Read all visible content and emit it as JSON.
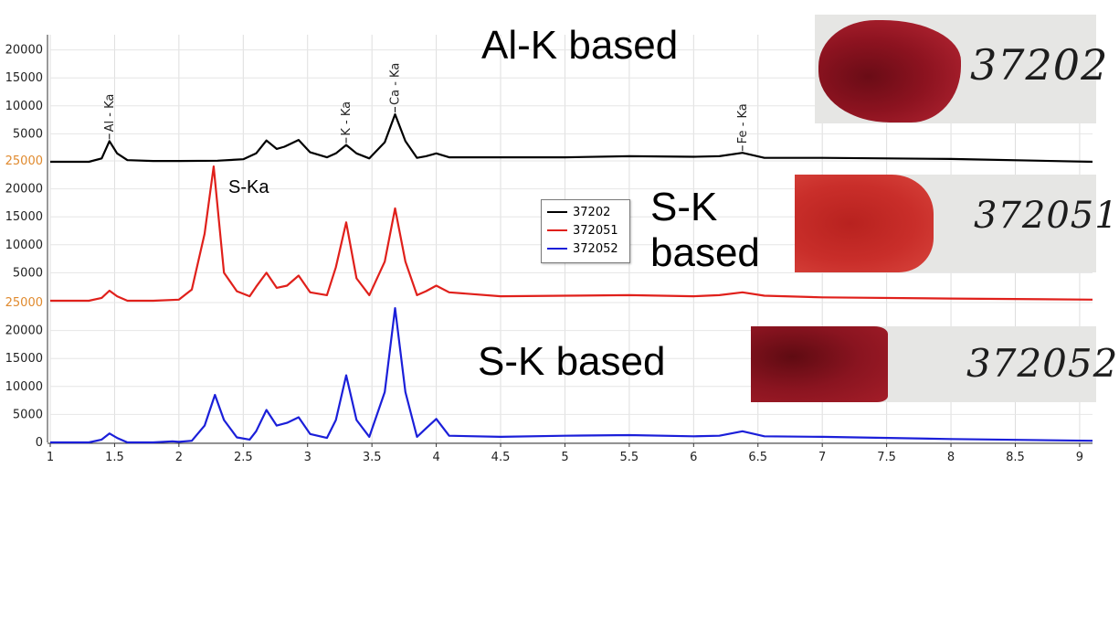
{
  "chart_data": {
    "type": "line",
    "xlim": [
      1,
      9.1
    ],
    "x_ticks": [
      "1",
      "1.5",
      "2",
      "2.5",
      "3",
      "3.5",
      "4",
      "4.5",
      "5",
      "5.5",
      "6",
      "6.5",
      "7",
      "7.5",
      "8",
      "8.5",
      "9"
    ],
    "y_ticks": [
      "0",
      "5000",
      "10000",
      "15000",
      "20000",
      "25000"
    ],
    "ylim_per_panel": [
      0,
      25000
    ],
    "peak_labels": [
      "Al - Ka",
      "K - Ka",
      "Ca - Ka",
      "Fe - Ka"
    ],
    "annotation": "S-Ka",
    "legend_position": "center",
    "series": [
      {
        "name": "37202",
        "color": "#000000",
        "x": [
          1.0,
          1.3,
          1.4,
          1.46,
          1.52,
          1.6,
          1.8,
          2.0,
          2.3,
          2.5,
          2.6,
          2.68,
          2.76,
          2.82,
          2.93,
          3.02,
          3.15,
          3.22,
          3.3,
          3.38,
          3.48,
          3.6,
          3.68,
          3.76,
          3.85,
          3.92,
          4.0,
          4.1,
          4.5,
          5.0,
          5.5,
          6.0,
          6.2,
          6.38,
          6.55,
          7.0,
          8.0,
          9.1
        ],
        "y": [
          0,
          0,
          600,
          3700,
          1500,
          300,
          150,
          150,
          200,
          450,
          1500,
          3800,
          2300,
          2700,
          3900,
          1700,
          800,
          1500,
          3000,
          1500,
          600,
          3500,
          8500,
          3700,
          700,
          1000,
          1500,
          800,
          800,
          800,
          1000,
          900,
          1000,
          1600,
          700,
          700,
          500,
          0
        ]
      },
      {
        "name": "372051",
        "color": "#e0201b",
        "x": [
          1.0,
          1.3,
          1.4,
          1.46,
          1.52,
          1.6,
          1.8,
          2.0,
          2.1,
          2.2,
          2.27,
          2.35,
          2.45,
          2.55,
          2.6,
          2.68,
          2.76,
          2.84,
          2.93,
          3.02,
          3.15,
          3.22,
          3.3,
          3.38,
          3.48,
          3.6,
          3.68,
          3.76,
          3.85,
          3.92,
          4.0,
          4.1,
          4.5,
          5.0,
          5.5,
          6.0,
          6.2,
          6.38,
          6.55,
          7.0,
          8.0,
          9.1
        ],
        "y": [
          0,
          0,
          500,
          1800,
          800,
          0,
          0,
          200,
          2000,
          12000,
          24000,
          5000,
          1700,
          800,
          2500,
          5000,
          2300,
          2700,
          4500,
          1500,
          1000,
          6000,
          14000,
          4000,
          1000,
          7000,
          16500,
          7000,
          1000,
          1700,
          2700,
          1500,
          800,
          900,
          1000,
          800,
          1000,
          1500,
          900,
          600,
          400,
          200
        ]
      },
      {
        "name": "372052",
        "color": "#1b1fd9",
        "x": [
          1.0,
          1.3,
          1.4,
          1.46,
          1.52,
          1.6,
          1.8,
          1.95,
          2.0,
          2.1,
          2.2,
          2.28,
          2.35,
          2.45,
          2.55,
          2.6,
          2.68,
          2.76,
          2.84,
          2.93,
          3.02,
          3.15,
          3.22,
          3.3,
          3.38,
          3.48,
          3.6,
          3.68,
          3.76,
          3.85,
          3.92,
          4.0,
          4.1,
          4.5,
          5.0,
          5.5,
          6.0,
          6.2,
          6.38,
          6.55,
          7.0,
          8.0,
          9.1
        ],
        "y": [
          0,
          0,
          500,
          1600,
          800,
          0,
          0,
          200,
          100,
          300,
          3000,
          8500,
          4000,
          900,
          500,
          2000,
          5800,
          3000,
          3500,
          4500,
          1500,
          800,
          4000,
          12000,
          4000,
          1000,
          9000,
          24000,
          9000,
          1000,
          2500,
          4200,
          1200,
          1000,
          1200,
          1300,
          1100,
          1200,
          2000,
          1100,
          1000,
          600,
          300
        ]
      }
    ]
  },
  "legend": {
    "items": [
      {
        "label": "37202",
        "color": "#000000"
      },
      {
        "label": "372051",
        "color": "#e0201b"
      },
      {
        "label": "372052",
        "color": "#1b1fd9"
      }
    ]
  },
  "notes": {
    "al_k": "Al-K based",
    "s_k_1_line1": "S-K",
    "s_k_1_line2": "based",
    "s_k_2": "S-K based"
  },
  "photos": [
    {
      "label": "37202",
      "stain_color": "#9c1420"
    },
    {
      "label": "372051",
      "stain_color": "#c9302c"
    },
    {
      "label": "372052",
      "stain_color": "#8f1420"
    }
  ]
}
